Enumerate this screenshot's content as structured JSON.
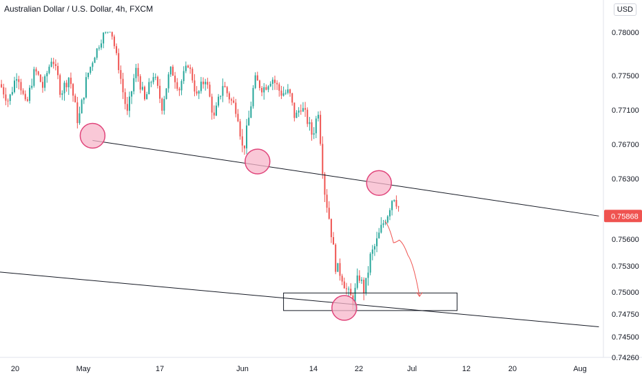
{
  "header": {
    "title": "Australian Dollar / U.S. Dollar, 4h, FXCM",
    "currency_label": "USD"
  },
  "colors": {
    "up": "#26a69a",
    "down": "#ef5350",
    "line": "#131722",
    "circle_fill": "#f7b6c9",
    "circle_stroke": "#e0447a",
    "projection": "#ef5350",
    "last_price_bg": "#ef5350"
  },
  "chart_data": {
    "type": "candlestick",
    "symbol": "AUDUSD",
    "timeframe": "4h",
    "y_ticks": [
      "0.78000",
      "0.77500",
      "0.77100",
      "0.76700",
      "0.76300",
      "0.75600",
      "0.75300",
      "0.75000",
      "0.74750",
      "0.74500",
      "0.74260"
    ],
    "x_ticks": [
      "20",
      "May",
      "17",
      "Jun",
      "14",
      "22",
      "Jul",
      "12",
      "20",
      "Aug"
    ],
    "last_price": "0.75868",
    "price_path": [
      {
        "t": 0,
        "p": 0.774
      },
      {
        "t": 3,
        "p": 0.772
      },
      {
        "t": 6,
        "p": 0.7755
      },
      {
        "t": 9,
        "p": 0.7712
      },
      {
        "t": 12,
        "p": 0.776
      },
      {
        "t": 15,
        "p": 0.7735
      },
      {
        "t": 18,
        "p": 0.7782
      },
      {
        "t": 21,
        "p": 0.773
      },
      {
        "t": 24,
        "p": 0.775
      },
      {
        "t": 27,
        "p": 0.7695
      },
      {
        "t": 30,
        "p": 0.7748
      },
      {
        "t": 33,
        "p": 0.779
      },
      {
        "t": 36,
        "p": 0.7825
      },
      {
        "t": 38,
        "p": 0.784
      },
      {
        "t": 40,
        "p": 0.779
      },
      {
        "t": 42,
        "p": 0.774
      },
      {
        "t": 44,
        "p": 0.7705
      },
      {
        "t": 47,
        "p": 0.776
      },
      {
        "t": 50,
        "p": 0.772
      },
      {
        "t": 53,
        "p": 0.7752
      },
      {
        "t": 56,
        "p": 0.7715
      },
      {
        "t": 59,
        "p": 0.776
      },
      {
        "t": 62,
        "p": 0.7735
      },
      {
        "t": 65,
        "p": 0.777
      },
      {
        "t": 68,
        "p": 0.7725
      },
      {
        "t": 71,
        "p": 0.7748
      },
      {
        "t": 74,
        "p": 0.77
      },
      {
        "t": 77,
        "p": 0.774
      },
      {
        "t": 80,
        "p": 0.772
      },
      {
        "t": 82,
        "p": 0.771
      },
      {
        "t": 84,
        "p": 0.766
      },
      {
        "t": 86,
        "p": 0.77
      },
      {
        "t": 88,
        "p": 0.7745
      },
      {
        "t": 91,
        "p": 0.7735
      },
      {
        "t": 94,
        "p": 0.7748
      },
      {
        "t": 97,
        "p": 0.773
      },
      {
        "t": 100,
        "p": 0.773
      },
      {
        "t": 102,
        "p": 0.77
      },
      {
        "t": 104,
        "p": 0.7715
      },
      {
        "t": 106,
        "p": 0.77
      },
      {
        "t": 108,
        "p": 0.768
      },
      {
        "t": 110,
        "p": 0.771
      },
      {
        "t": 112,
        "p": 0.762
      },
      {
        "t": 114,
        "p": 0.758
      },
      {
        "t": 116,
        "p": 0.753
      },
      {
        "t": 118,
        "p": 0.752
      },
      {
        "t": 120,
        "p": 0.75
      },
      {
        "t": 122,
        "p": 0.749
      },
      {
        "t": 124,
        "p": 0.752
      },
      {
        "t": 126,
        "p": 0.75
      },
      {
        "t": 128,
        "p": 0.754
      },
      {
        "t": 130,
        "p": 0.7555
      },
      {
        "t": 132,
        "p": 0.7575
      },
      {
        "t": 134,
        "p": 0.759
      },
      {
        "t": 136,
        "p": 0.7612
      },
      {
        "t": 138,
        "p": 0.7595
      }
    ],
    "trendlines": [
      {
        "name": "upper-trendline",
        "from": {
          "t": 32,
          "p": 0.76745
        },
        "to": {
          "t": 207,
          "p": 0.75868
        }
      },
      {
        "name": "lower-trendline",
        "from": {
          "t": 0,
          "p": 0.7523
        },
        "to": {
          "t": 207,
          "p": 0.7461
        }
      }
    ],
    "touch_points": [
      {
        "t": 32,
        "p": 0.768
      },
      {
        "t": 89,
        "p": 0.765
      },
      {
        "t": 131,
        "p": 0.7625
      },
      {
        "t": 119,
        "p": 0.7482
      }
    ],
    "support_zone": {
      "t_start": 98,
      "t_end": 158,
      "p_high": 0.7499,
      "p_low": 0.7479
    },
    "projection": [
      {
        "t": 133,
        "p": 0.7581
      },
      {
        "t": 136,
        "p": 0.7556
      },
      {
        "t": 138,
        "p": 0.7559
      },
      {
        "t": 141,
        "p": 0.7542
      },
      {
        "t": 145,
        "p": 0.7495
      }
    ],
    "grid": false
  }
}
